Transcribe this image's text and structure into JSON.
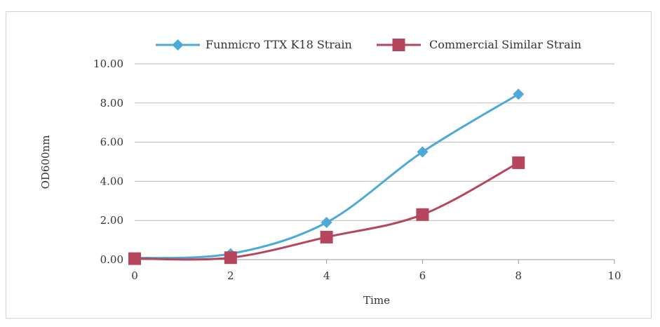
{
  "chart_data": {
    "type": "line",
    "title": "",
    "xlabel": "Time",
    "ylabel": "OD600nm",
    "xlim": [
      0,
      10
    ],
    "ylim": [
      0,
      10
    ],
    "x_ticks": [
      "0",
      "2",
      "4",
      "6",
      "8",
      "10"
    ],
    "y_ticks": [
      "0.00",
      "2.00",
      "4.00",
      "6.00",
      "8.00",
      "10.00"
    ],
    "grid": "horizontal",
    "legend_position": "top",
    "series": [
      {
        "name": "Funmicro TTX K18 Strain",
        "color": "#4da9d8",
        "marker": "diamond",
        "x": [
          0,
          2,
          4,
          6,
          8
        ],
        "y": [
          0.08,
          0.3,
          1.9,
          5.5,
          8.45
        ]
      },
      {
        "name": "Commercial Similar Strain",
        "color": "#b5465e",
        "marker": "square",
        "x": [
          0,
          2,
          4,
          6,
          8
        ],
        "y": [
          0.05,
          0.1,
          1.15,
          2.3,
          4.95
        ]
      }
    ]
  }
}
